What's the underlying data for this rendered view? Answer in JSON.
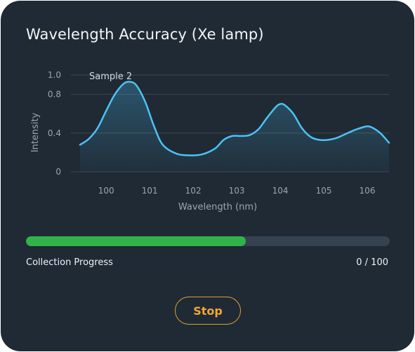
{
  "panel": {
    "title": "Wavelength Accuracy (Xe lamp)"
  },
  "chart_data": {
    "type": "line",
    "title": "",
    "xlabel": "Wavelength (nm)",
    "ylabel": "Intensity",
    "xlim": [
      99.4,
      106.5
    ],
    "ylim": [
      0,
      1.0
    ],
    "x_ticks": [
      "100",
      "101",
      "102",
      "103",
      "104",
      "105",
      "106"
    ],
    "y_ticks": [
      "0",
      "0.4",
      "0.8",
      "1.0"
    ],
    "grid": true,
    "annotation": "Sample 2",
    "series": [
      {
        "name": "Sample 2",
        "color": "#4cc3f5",
        "x": [
          99.4,
          99.6,
          99.8,
          100.0,
          100.2,
          100.4,
          100.55,
          100.7,
          100.9,
          101.1,
          101.3,
          101.6,
          101.9,
          102.2,
          102.5,
          102.7,
          102.9,
          103.1,
          103.3,
          103.5,
          103.7,
          103.9,
          104.0,
          104.1,
          104.3,
          104.5,
          104.7,
          104.9,
          105.1,
          105.3,
          105.5,
          105.7,
          105.9,
          106.0,
          106.1,
          106.3,
          106.5
        ],
        "y": [
          0.28,
          0.34,
          0.45,
          0.63,
          0.8,
          0.91,
          0.93,
          0.89,
          0.72,
          0.47,
          0.28,
          0.19,
          0.17,
          0.18,
          0.24,
          0.33,
          0.37,
          0.37,
          0.38,
          0.44,
          0.56,
          0.67,
          0.7,
          0.69,
          0.6,
          0.45,
          0.36,
          0.33,
          0.33,
          0.35,
          0.39,
          0.43,
          0.46,
          0.47,
          0.46,
          0.4,
          0.3
        ]
      }
    ]
  },
  "progress": {
    "label": "Collection Progress",
    "count": "0 / 100",
    "fraction": 0.605,
    "color": "#32b34a"
  },
  "actions": {
    "stop_label": "Stop"
  }
}
